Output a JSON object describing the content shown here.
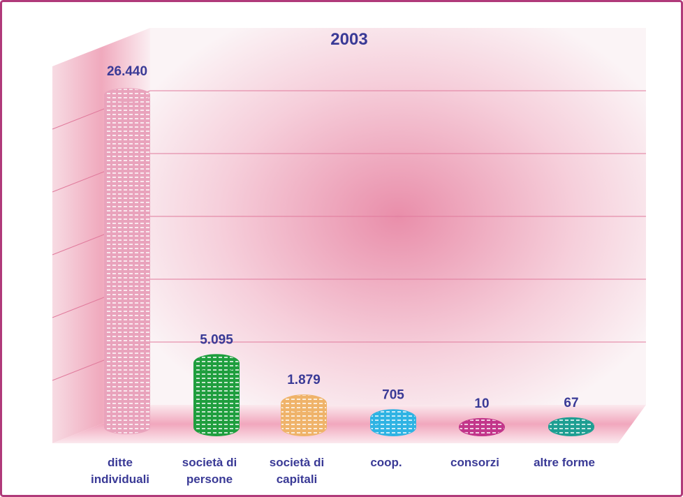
{
  "chart_data": {
    "type": "bar",
    "title": "2003",
    "categories": [
      [
        "ditte",
        "individuali"
      ],
      [
        "società di",
        "persone"
      ],
      [
        "società di",
        "capitali"
      ],
      [
        "coop."
      ],
      [
        "consorzi"
      ],
      [
        "altre forme"
      ]
    ],
    "values": [
      26440,
      5095,
      1879,
      705,
      10,
      67
    ],
    "value_labels": [
      "26.440",
      "5.095",
      "1.879",
      "705",
      "10",
      "67"
    ],
    "colors": [
      "#e9a3bc",
      "#1f9e3e",
      "#efb36a",
      "#2fb3e3",
      "#c2368a",
      "#1e9e92"
    ],
    "ylim": [
      0,
      30000
    ],
    "yticks": [
      0,
      5000,
      10000,
      15000,
      20000,
      25000
    ],
    "grid": true
  }
}
